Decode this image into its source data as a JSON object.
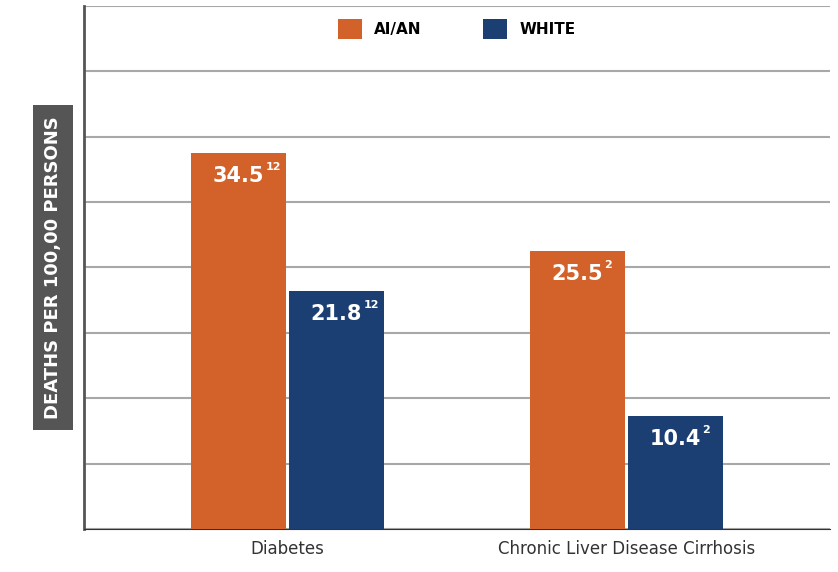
{
  "chart_data": {
    "type": "bar",
    "y_label": "DEATHS PER 100,00 PERSONS",
    "categories": [
      "Diabetes",
      "Chronic Liver Disease Cirrhosis"
    ],
    "series": [
      {
        "name": "AI/AN",
        "color": "#d2612a",
        "values": [
          34.5,
          25.5
        ],
        "footnotes": [
          "12",
          "2"
        ]
      },
      {
        "name": "WHITE",
        "color": "#1b3f73",
        "values": [
          21.8,
          10.4
        ],
        "footnotes": [
          "12",
          "2"
        ]
      }
    ],
    "ylim": [
      0,
      48
    ],
    "yticks": [
      0,
      6,
      12,
      18,
      24,
      30,
      36,
      42,
      48
    ],
    "grid": true,
    "legend": "upper center",
    "data_labels": true,
    "tick_labels": "x"
  }
}
